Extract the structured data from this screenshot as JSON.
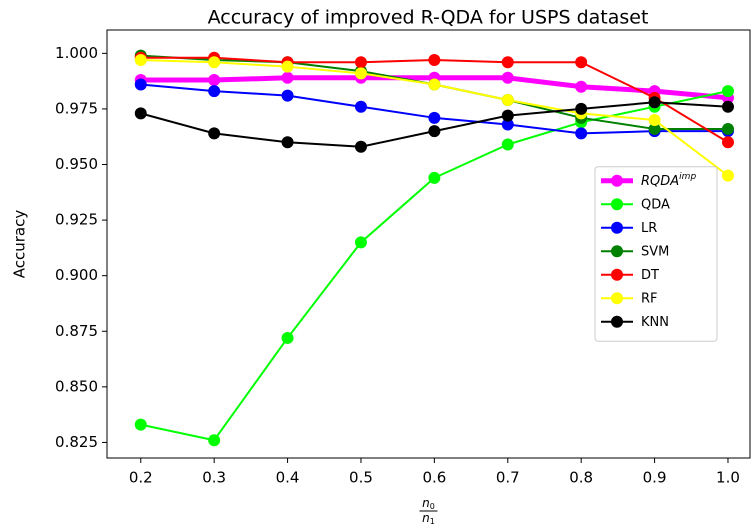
{
  "chart_data": {
    "type": "line",
    "title": "Accuracy of improved R-QDA for USPS dataset",
    "ylabel": "Accuracy",
    "xlabel": {
      "numerator": "n0",
      "denominator": "n1"
    },
    "x": [
      0.2,
      0.3,
      0.4,
      0.5,
      0.6,
      0.7,
      0.8,
      0.9,
      1.0
    ],
    "xlim": [
      0.154,
      1.03
    ],
    "xticks": [
      0.2,
      0.3,
      0.4,
      0.5,
      0.6,
      0.7,
      0.8,
      0.9,
      {
        "value": 1.0,
        "label": "1.0"
      }
    ],
    "ylim": [
      0.818,
      1.0105
    ],
    "yticks": [
      0.825,
      {
        "value": 0.85,
        "label": "0.850"
      },
      0.875,
      {
        "value": 0.9,
        "label": "0.900"
      },
      0.925,
      {
        "value": 0.95,
        "label": "0.950"
      },
      0.975,
      {
        "value": 1.0,
        "label": "1.000"
      }
    ],
    "legend": "center right",
    "series": [
      {
        "name": "RQDA^imp",
        "color": "#ff00ff",
        "values": [
          0.988,
          0.988,
          0.989,
          0.989,
          0.989,
          0.989,
          0.985,
          0.983,
          0.98
        ]
      },
      {
        "name": "QDA",
        "color": "#00ff00",
        "values": [
          0.833,
          0.826,
          0.872,
          0.915,
          0.944,
          0.959,
          0.969,
          0.976,
          0.983
        ]
      },
      {
        "name": "LR",
        "color": "#0000ff",
        "values": [
          0.986,
          0.983,
          0.981,
          0.976,
          0.971,
          0.968,
          0.964,
          0.965,
          0.965
        ]
      },
      {
        "name": "SVM",
        "color": "#008000",
        "values": [
          0.999,
          0.997,
          0.996,
          0.992,
          0.986,
          0.979,
          0.971,
          0.966,
          0.966
        ]
      },
      {
        "name": "DT",
        "color": "#ff0000",
        "values": [
          0.998,
          0.998,
          0.996,
          0.996,
          0.997,
          0.996,
          0.996,
          0.98,
          0.96
        ]
      },
      {
        "name": "RF",
        "color": "#ffff00",
        "values": [
          0.997,
          0.996,
          0.994,
          0.991,
          0.986,
          0.979,
          0.973,
          0.97,
          0.945
        ]
      },
      {
        "name": "KNN",
        "color": "#000000",
        "values": [
          0.973,
          0.964,
          0.96,
          0.958,
          0.965,
          0.972,
          0.975,
          0.978,
          0.976
        ]
      }
    ]
  }
}
